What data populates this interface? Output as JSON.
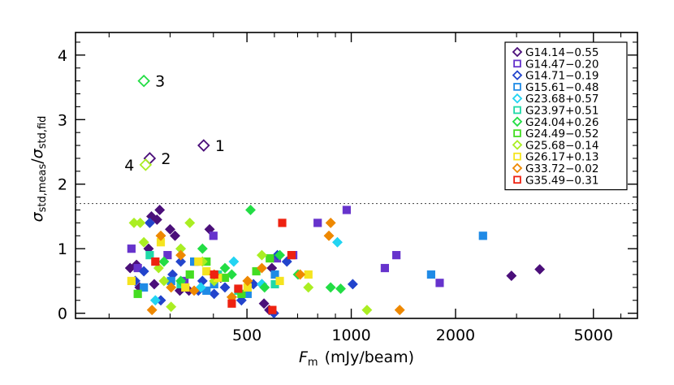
{
  "chart_data": {
    "type": "scatter",
    "title": "",
    "xlabel_main": "F",
    "xlabel_sub": "m",
    "xlabel_rest": "(mJy/beam)",
    "ylabel_main": "σ",
    "ylabel_num_sub": "std,meas",
    "ylabel_den_sub": "std,fid",
    "x_scale": "log",
    "xlim": [
      160,
      6700
    ],
    "ylim": [
      -0.08,
      4.35
    ],
    "x_ticks": [
      500,
      1000,
      2000,
      5000
    ],
    "x_tick_labels": [
      "500",
      "1000",
      "2000",
      "5000"
    ],
    "y_ticks": [
      0,
      1,
      2,
      3,
      4
    ],
    "y_tick_labels": [
      "0",
      "1",
      "2",
      "3",
      "4"
    ],
    "threshold_y": 1.7,
    "legend_position": "top-right",
    "series": [
      {
        "name": "G14.14−0.55",
        "color": "#4B0F7A",
        "marker": "diamond",
        "fill": true,
        "x": [
          230,
          240,
          245,
          260,
          265,
          270,
          275,
          280,
          300,
          310,
          320,
          340,
          390,
          420,
          560,
          580,
          590,
          3500,
          2900
        ],
        "y": [
          0.7,
          0.75,
          0.4,
          1.0,
          1.5,
          0.45,
          1.45,
          1.6,
          1.3,
          1.2,
          0.35,
          0.35,
          1.3,
          0.55,
          0.15,
          0.05,
          0.7,
          0.68,
          0.58
        ]
      },
      {
        "name": "G14.47−0.20",
        "color": "#6633CC",
        "marker": "square",
        "fill": true,
        "x": [
          232,
          242,
          295,
          330,
          355,
          400,
          610,
          680,
          800,
          970,
          1250,
          1350,
          1800
        ],
        "y": [
          1.0,
          0.7,
          0.9,
          0.5,
          0.8,
          1.2,
          0.85,
          0.9,
          1.4,
          1.6,
          0.7,
          0.9,
          0.47
        ]
      },
      {
        "name": "G14.71−0.19",
        "color": "#2244CC",
        "marker": "diamond",
        "fill": true,
        "x": [
          238,
          252,
          262,
          282,
          305,
          322,
          362,
          372,
          402,
          432,
          482,
          522,
          552,
          598,
          612,
          652,
          1010
        ],
        "y": [
          0.5,
          0.65,
          1.4,
          0.2,
          0.6,
          0.8,
          0.35,
          0.5,
          0.3,
          0.4,
          0.2,
          0.45,
          0.45,
          0.0,
          0.9,
          0.8,
          0.45
        ]
      },
      {
        "name": "G15.61−0.48",
        "color": "#1F8AE6",
        "marker": "square",
        "fill": true,
        "x": [
          252,
          302,
          352,
          382,
          402,
          502,
          602,
          1700,
          2400
        ],
        "y": [
          0.4,
          0.5,
          0.8,
          0.35,
          0.45,
          0.3,
          0.6,
          0.6,
          1.2
        ]
      },
      {
        "name": "G23.68+0.57",
        "color": "#22D4F2",
        "marker": "diamond",
        "fill": true,
        "x": [
          272,
          322,
          368,
          458,
          552,
          912
        ],
        "y": [
          0.2,
          1.0,
          0.4,
          0.8,
          0.45,
          1.1
        ]
      },
      {
        "name": "G23.97+0.51",
        "color": "#1FD9A8",
        "marker": "square",
        "fill": true,
        "x": [
          262,
          322,
          412,
          472,
          602
        ],
        "y": [
          0.9,
          0.45,
          0.6,
          0.35,
          0.45
        ]
      },
      {
        "name": "G24.04+0.26",
        "color": "#22DD44",
        "marker": "diamond",
        "fill": true,
        "x": [
          288,
          322,
          372,
          432,
          452,
          512,
          562,
          622,
          702,
          872,
          932
        ],
        "y": [
          0.8,
          0.5,
          1.0,
          0.7,
          0.6,
          1.6,
          0.4,
          0.9,
          0.6,
          0.4,
          0.38
        ]
      },
      {
        "name": "G24.49−0.52",
        "color": "#44DD22",
        "marker": "square",
        "fill": true,
        "x": [
          242,
          342,
          382,
          432,
          482,
          532,
          582
        ],
        "y": [
          0.3,
          0.6,
          0.8,
          0.55,
          0.3,
          0.65,
          0.85
        ]
      },
      {
        "name": "G25.68−0.14",
        "color": "#AAEE22",
        "marker": "diamond",
        "fill": true,
        "x": [
          236,
          246,
          252,
          278,
          288,
          302,
          322,
          342,
          372,
          402,
          452,
          552,
          752,
          1110
        ],
        "y": [
          1.4,
          1.4,
          1.1,
          0.7,
          0.5,
          0.1,
          1.0,
          1.4,
          0.8,
          0.5,
          0.25,
          0.9,
          0.4,
          0.05
        ]
      },
      {
        "name": "G26.17+0.13",
        "color": "#F5E41F",
        "marker": "square",
        "fill": true,
        "x": [
          232,
          282,
          332,
          362,
          382,
          412,
          502,
          622,
          752
        ],
        "y": [
          0.5,
          1.1,
          0.4,
          0.8,
          0.65,
          0.55,
          0.4,
          0.5,
          0.6
        ]
      },
      {
        "name": "G33.72−0.02",
        "color": "#EE8800",
        "marker": "diamond",
        "fill": true,
        "x": [
          266,
          282,
          302,
          322,
          352,
          402,
          452,
          502,
          552,
          712,
          862,
          872,
          1380
        ],
        "y": [
          0.05,
          1.2,
          0.4,
          0.9,
          0.35,
          0.6,
          0.25,
          0.5,
          0.7,
          0.6,
          1.2,
          1.4,
          0.05
        ]
      },
      {
        "name": "G35.49−0.31",
        "color": "#EE2211",
        "marker": "square",
        "fill": true,
        "x": [
          272,
          402,
          452,
          472,
          592,
          632,
          672
        ],
        "y": [
          0.8,
          0.6,
          0.15,
          0.38,
          0.05,
          1.4,
          0.9
        ]
      }
    ],
    "outliers": [
      {
        "label": "1",
        "x": 375,
        "y": 2.6,
        "color": "#4B0F7A",
        "marker": "diamond",
        "label_side": "right"
      },
      {
        "label": "2",
        "x": 262,
        "y": 2.4,
        "color": "#4B0F7A",
        "marker": "diamond",
        "label_side": "right"
      },
      {
        "label": "3",
        "x": 252,
        "y": 3.6,
        "color": "#22DD44",
        "marker": "diamond",
        "label_side": "right"
      },
      {
        "label": "4",
        "x": 255,
        "y": 2.3,
        "color": "#AAEE22",
        "marker": "diamond",
        "label_side": "left"
      }
    ]
  }
}
